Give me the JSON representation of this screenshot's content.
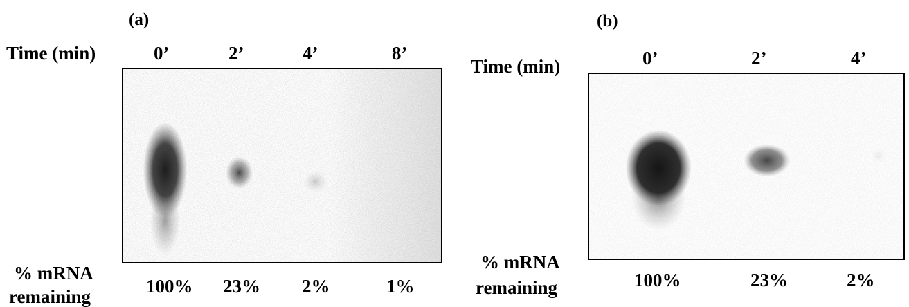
{
  "panel_a": {
    "label": "(a)",
    "time_label": "Time (min)",
    "lanes": [
      "0’",
      "2’",
      "4’",
      "8’"
    ],
    "remaining_label_line1": "% mRNA",
    "remaining_label_line2": "remaining",
    "percents": [
      "100%",
      "23%",
      "2%",
      "1%"
    ]
  },
  "panel_b": {
    "label": "(b)",
    "time_label": "Time (min)",
    "lanes": [
      "0’",
      "2’",
      "4’"
    ],
    "remaining_label_line1": "% mRNA",
    "remaining_label_line2": "remaining",
    "percents": [
      "100%",
      "23%",
      "2%"
    ]
  }
}
